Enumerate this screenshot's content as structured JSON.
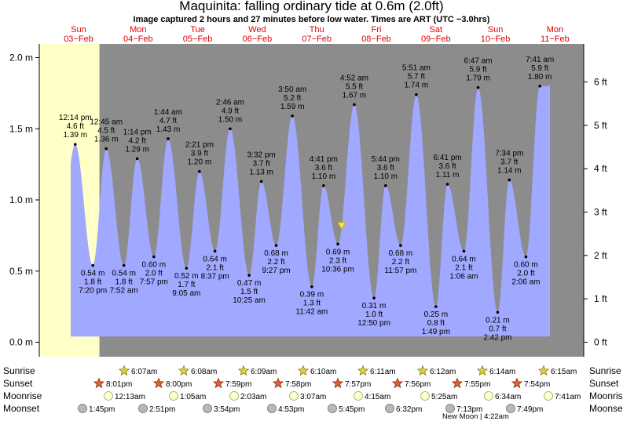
{
  "title": "Maquinita: falling  ordinary tide at 0.6m (2.0ft)",
  "subtitle": "Image captured 2 hours and 27 minutes before low water. Times are ART (UTC −3.0hrs)",
  "colors": {
    "day": "#ffffc8",
    "night": "#8c8c8c",
    "water": "#a0a8ff",
    "axis": "#000000",
    "date": "#e00000",
    "now_marker": "#f5e642"
  },
  "now_marker": {
    "day_offset": 4.49
  },
  "days": [
    {
      "name": "Sun",
      "date": "03−Feb"
    },
    {
      "name": "Mon",
      "date": "04−Feb"
    },
    {
      "name": "Tue",
      "date": "05−Feb"
    },
    {
      "name": "Wed",
      "date": "06−Feb"
    },
    {
      "name": "Thu",
      "date": "07−Feb"
    },
    {
      "name": "Fri",
      "date": "08−Feb"
    },
    {
      "name": "Sat",
      "date": "09−Feb"
    },
    {
      "name": "Sun",
      "date": "10−Feb"
    },
    {
      "name": "Mon",
      "date": "11−Feb"
    }
  ],
  "rows": {
    "sunrise": "Sunrise",
    "sunset": "Sunset",
    "moonrise": "Moonrise",
    "moonset": "Moonset"
  },
  "sunrise": [
    "6:07am",
    "6:08am",
    "6:09am",
    "6:10am",
    "6:11am",
    "6:12am",
    "6:14am",
    "6:15am"
  ],
  "sunset": [
    "8:01pm",
    "8:00pm",
    "7:59pm",
    "7:58pm",
    "7:57pm",
    "7:56pm",
    "7:55pm",
    "7:54pm"
  ],
  "moonrise": [
    "12:13am",
    "1:05am",
    "2:03am",
    "3:07am",
    "4:15am",
    "5:25am",
    "6:34am",
    "7:41am"
  ],
  "moonset": [
    "1:45pm",
    "2:51pm",
    "3:54pm",
    "4:53pm",
    "5:45pm",
    "6:32pm",
    "7:13pm",
    "7:49pm"
  ],
  "moon_phase": "New Moon | 4:22am",
  "chart_data": {
    "type": "area",
    "title": "Maquinita: falling  ordinary tide at 0.6m (2.0ft)",
    "ylabel_left": "m",
    "ylabel_right": "ft",
    "ylim": [
      -0.05,
      2.1
    ],
    "yticks_m": [
      "0.0 m",
      "0.5 m",
      "1.0 m",
      "1.5 m",
      "2.0 m"
    ],
    "yticks_ft": [
      "0 ft",
      "1 ft",
      "2 ft",
      "3 ft",
      "4 ft",
      "5 ft",
      "6 ft"
    ],
    "extremes": [
      {
        "d": 0.01,
        "m": 1.39,
        "time": "12:14 pm",
        "ft": "4.6 ft",
        "mt": "1.39 m",
        "type": "high"
      },
      {
        "d": 0.306,
        "m": 0.54,
        "time": "7:20 pm",
        "ft": "1.8 ft",
        "mt": "0.54 m",
        "type": "low"
      },
      {
        "d": 0.531,
        "m": 1.36,
        "time": "12:45 am",
        "ft": "4.5 ft",
        "mt": "1.36 m",
        "type": "high"
      },
      {
        "d": 0.828,
        "m": 0.54,
        "time": "7:52 am",
        "ft": "1.8 ft",
        "mt": "0.54 m",
        "type": "low"
      },
      {
        "d": 1.052,
        "m": 1.29,
        "time": "1:14 pm",
        "ft": "4.2 ft",
        "mt": "1.29 m",
        "type": "high"
      },
      {
        "d": 1.332,
        "m": 0.6,
        "time": "7:57 pm",
        "ft": "2.0 ft",
        "mt": "0.60 m",
        "type": "low"
      },
      {
        "d": 1.572,
        "m": 1.43,
        "time": "1:44 am",
        "ft": "4.7 ft",
        "mt": "1.43 m",
        "type": "high"
      },
      {
        "d": 1.88,
        "m": 0.52,
        "time": "9:05 am",
        "ft": "1.7 ft",
        "mt": "0.52 m",
        "type": "low"
      },
      {
        "d": 2.099,
        "m": 1.2,
        "time": "2:21 pm",
        "ft": "3.9 ft",
        "mt": "1.20 m",
        "type": "high"
      },
      {
        "d": 2.36,
        "m": 0.64,
        "time": "8:37 pm",
        "ft": "2.1 ft",
        "mt": "0.64 m",
        "type": "low"
      },
      {
        "d": 2.615,
        "m": 1.5,
        "time": "2:46 am",
        "ft": "4.9 ft",
        "mt": "1.50 m",
        "type": "high"
      },
      {
        "d": 2.934,
        "m": 0.47,
        "time": "10:25 am",
        "ft": "1.5 ft",
        "mt": "0.47 m",
        "type": "low"
      },
      {
        "d": 3.14,
        "m": 1.13,
        "time": "3:32 pm",
        "ft": "3.7 ft",
        "mt": "1.13 m",
        "type": "high"
      },
      {
        "d": 3.389,
        "m": 0.68,
        "time": "9:27 pm",
        "ft": "2.2 ft",
        "mt": "0.68 m",
        "type": "low"
      },
      {
        "d": 3.661,
        "m": 1.59,
        "time": "3:50 am",
        "ft": "5.2 ft",
        "mt": "1.59 m",
        "type": "high"
      },
      {
        "d": 3.988,
        "m": 0.39,
        "time": "11:42 am",
        "ft": "1.3 ft",
        "mt": "0.39 m",
        "type": "low"
      },
      {
        "d": 4.186,
        "m": 1.1,
        "time": "4:41 pm",
        "ft": "3.6 ft",
        "mt": "1.10 m",
        "type": "high"
      },
      {
        "d": 4.426,
        "m": 0.69,
        "time": "10:36 pm",
        "ft": "2.3 ft",
        "mt": "0.69 m",
        "type": "low"
      },
      {
        "d": 4.702,
        "m": 1.67,
        "time": "4:52 am",
        "ft": "5.5 ft",
        "mt": "1.67 m",
        "type": "high"
      },
      {
        "d": 5.034,
        "m": 0.31,
        "time": "12:50 pm",
        "ft": "1.0 ft",
        "mt": "0.31 m",
        "type": "low"
      },
      {
        "d": 5.229,
        "m": 1.1,
        "time": "5:44 pm",
        "ft": "3.6 ft",
        "mt": "1.10 m",
        "type": "high"
      },
      {
        "d": 5.481,
        "m": 0.68,
        "time": "11:57 pm",
        "ft": "2.2 ft",
        "mt": "0.68 m",
        "type": "low"
      },
      {
        "d": 5.745,
        "m": 1.74,
        "time": "5:51 am",
        "ft": "5.7 ft",
        "mt": "1.74 m",
        "type": "high"
      },
      {
        "d": 6.075,
        "m": 0.25,
        "time": "1:49 pm",
        "ft": "0.8 ft",
        "mt": "0.25 m",
        "type": "low"
      },
      {
        "d": 6.269,
        "m": 1.11,
        "time": "6:41 pm",
        "ft": "3.6 ft",
        "mt": "1.11 m",
        "type": "high"
      },
      {
        "d": 6.545,
        "m": 0.64,
        "time": "1:06 am",
        "ft": "2.1 ft",
        "mt": "0.64 m",
        "type": "low"
      },
      {
        "d": 6.784,
        "m": 1.79,
        "time": "6:47 am",
        "ft": "5.9 ft",
        "mt": "1.79 m",
        "type": "high"
      },
      {
        "d": 7.113,
        "m": 0.21,
        "time": "2:42 pm",
        "ft": "0.7 ft",
        "mt": "0.21 m",
        "type": "low"
      },
      {
        "d": 7.309,
        "m": 1.14,
        "time": "7:34 pm",
        "ft": "3.7 ft",
        "mt": "1.14 m",
        "type": "high"
      },
      {
        "d": 7.588,
        "m": 0.6,
        "time": "2:06 am",
        "ft": "2.0 ft",
        "mt": "0.60 m",
        "type": "low"
      },
      {
        "d": 7.823,
        "m": 1.8,
        "time": "7:41 am",
        "ft": "5.9 ft",
        "mt": "1.80 m",
        "type": "high"
      }
    ]
  }
}
